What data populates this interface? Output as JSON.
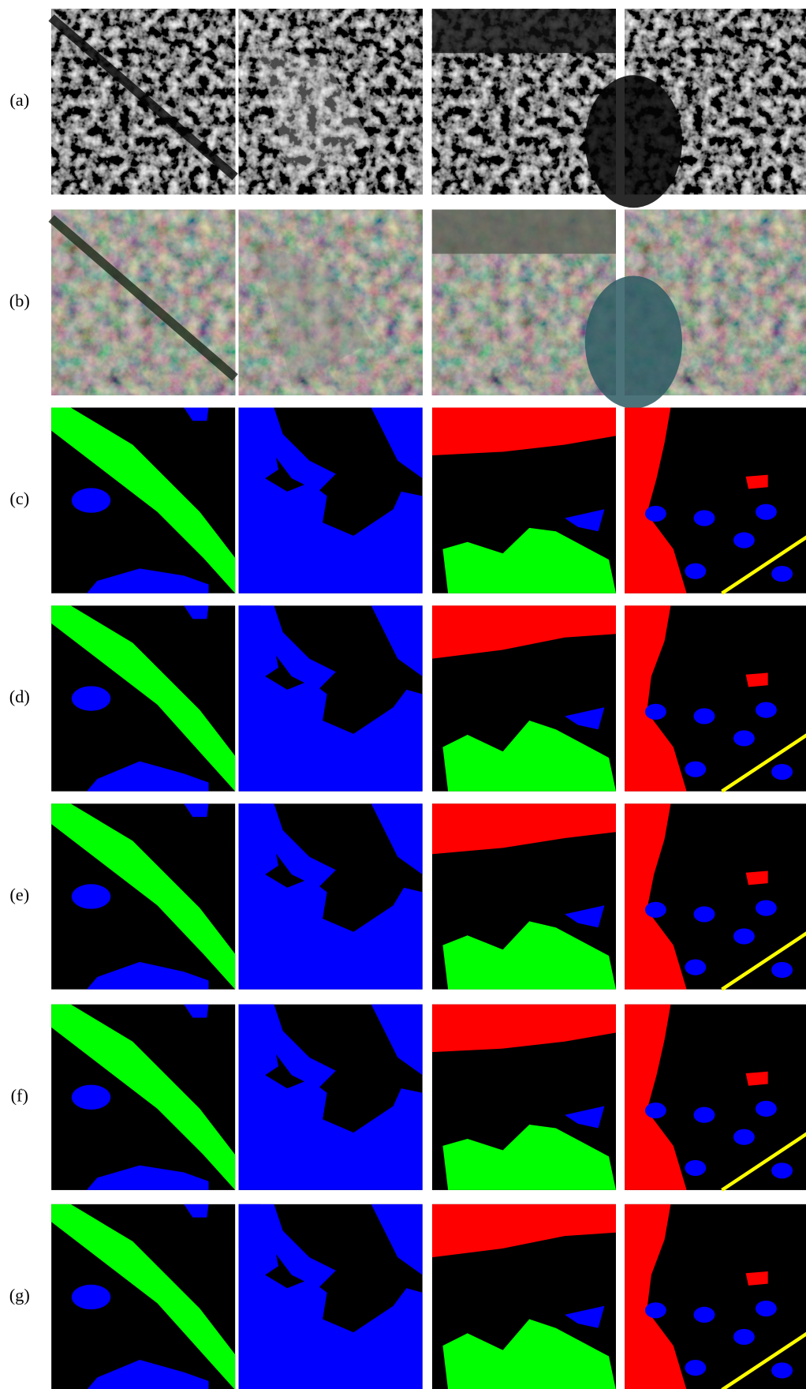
{
  "figure": {
    "rows": [
      {
        "label": "(a)"
      },
      {
        "label": "(b)"
      },
      {
        "label": "(c)"
      },
      {
        "label": "(d)"
      },
      {
        "label": "(e)"
      },
      {
        "label": "(f)"
      },
      {
        "label": "(g)"
      }
    ]
  }
}
